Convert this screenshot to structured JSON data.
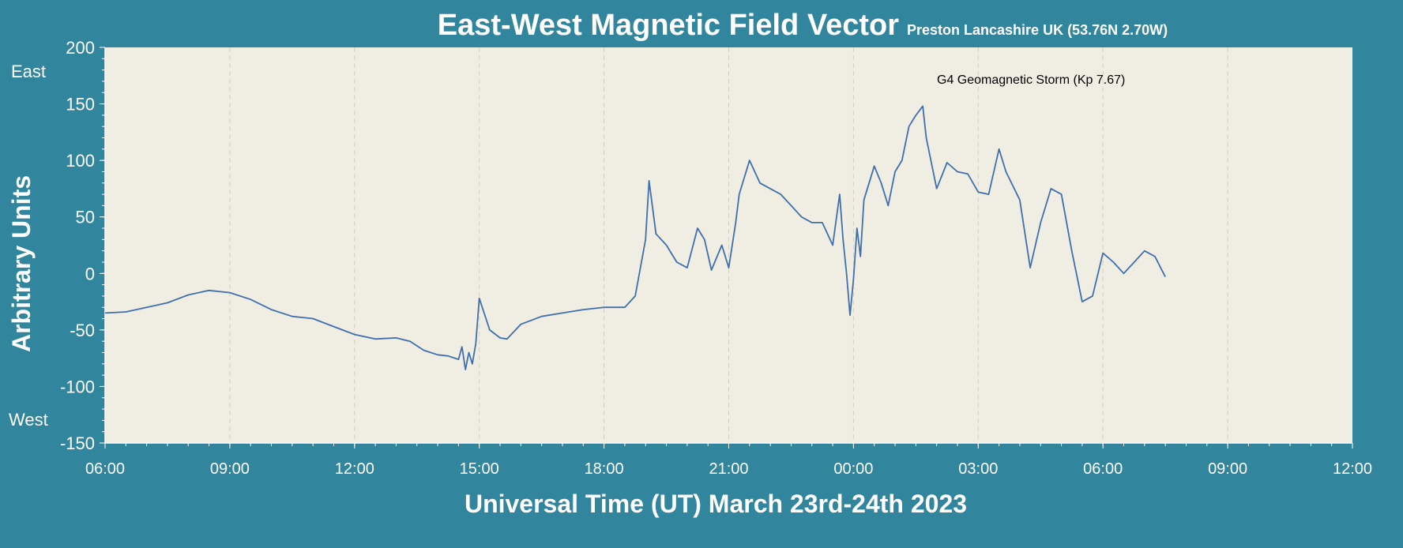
{
  "chart_data": {
    "type": "line",
    "title": "East-West Magnetic Field Vector",
    "subtitle": "Preston Lancashire UK (53.76N 2.70W)",
    "xlabel": "Universal Time (UT) March 23rd-24th 2023",
    "ylabel": "Arbitrary Units",
    "y_top_label": "East",
    "y_bottom_label": "West",
    "annotation": "G4 Geomagnetic Storm (Kp 7.67)",
    "ylim": [
      -150,
      200
    ],
    "yticks": [
      -150,
      -100,
      -50,
      0,
      50,
      100,
      150,
      200
    ],
    "xlim": [
      "2023-03-23 06:00",
      "2023-03-24 12:00"
    ],
    "xtick_labels": [
      "06:00",
      "09:00",
      "12:00",
      "15:00",
      "18:00",
      "21:00",
      "00:00",
      "03:00",
      "06:00",
      "09:00",
      "12:00"
    ],
    "grid": "vertical-dashed",
    "colors": {
      "background": "#31859c",
      "plot_area": "#f0ede2",
      "line": "#3f6fae",
      "grid": "#d4d0c2"
    },
    "series": [
      {
        "x": [
          "2023-03-23 06:00",
          "2023-03-23 06:30",
          "2023-03-23 07:00",
          "2023-03-23 07:30",
          "2023-03-23 08:00",
          "2023-03-23 08:30",
          "2023-03-23 09:00",
          "2023-03-23 09:30",
          "2023-03-23 10:00",
          "2023-03-23 10:30",
          "2023-03-23 11:00",
          "2023-03-23 11:30",
          "2023-03-23 12:00",
          "2023-03-23 12:30",
          "2023-03-23 13:00",
          "2023-03-23 13:20",
          "2023-03-23 13:40",
          "2023-03-23 14:00",
          "2023-03-23 14:15",
          "2023-03-23 14:30",
          "2023-03-23 14:35",
          "2023-03-23 14:40",
          "2023-03-23 14:45",
          "2023-03-23 14:50",
          "2023-03-23 14:55",
          "2023-03-23 15:00",
          "2023-03-23 15:15",
          "2023-03-23 15:30",
          "2023-03-23 15:40",
          "2023-03-23 16:00",
          "2023-03-23 16:30",
          "2023-03-23 17:00",
          "2023-03-23 17:30",
          "2023-03-23 18:00",
          "2023-03-23 18:30",
          "2023-03-23 18:45",
          "2023-03-23 19:00",
          "2023-03-23 19:05",
          "2023-03-23 19:15",
          "2023-03-23 19:30",
          "2023-03-23 19:45",
          "2023-03-23 20:00",
          "2023-03-23 20:15",
          "2023-03-23 20:25",
          "2023-03-23 20:35",
          "2023-03-23 20:50",
          "2023-03-23 21:00",
          "2023-03-23 21:10",
          "2023-03-23 21:15",
          "2023-03-23 21:30",
          "2023-03-23 21:45",
          "2023-03-23 22:00",
          "2023-03-23 22:15",
          "2023-03-23 22:30",
          "2023-03-23 22:45",
          "2023-03-23 23:00",
          "2023-03-23 23:15",
          "2023-03-23 23:30",
          "2023-03-23 23:40",
          "2023-03-23 23:45",
          "2023-03-23 23:50",
          "2023-03-23 23:55",
          "2023-03-24 00:00",
          "2023-03-24 00:05",
          "2023-03-24 00:10",
          "2023-03-24 00:15",
          "2023-03-24 00:30",
          "2023-03-24 00:40",
          "2023-03-24 00:50",
          "2023-03-24 01:00",
          "2023-03-24 01:10",
          "2023-03-24 01:20",
          "2023-03-24 01:30",
          "2023-03-24 01:40",
          "2023-03-24 01:45",
          "2023-03-24 02:00",
          "2023-03-24 02:15",
          "2023-03-24 02:30",
          "2023-03-24 02:45",
          "2023-03-24 03:00",
          "2023-03-24 03:15",
          "2023-03-24 03:30",
          "2023-03-24 03:40",
          "2023-03-24 04:00",
          "2023-03-24 04:15",
          "2023-03-24 04:30",
          "2023-03-24 04:45",
          "2023-03-24 05:00",
          "2023-03-24 05:15",
          "2023-03-24 05:30",
          "2023-03-24 05:45",
          "2023-03-24 06:00",
          "2023-03-24 06:15",
          "2023-03-24 06:30",
          "2023-03-24 06:45",
          "2023-03-24 07:00",
          "2023-03-24 07:15",
          "2023-03-24 07:30"
        ],
        "values": [
          -35,
          -34,
          -30,
          -26,
          -19,
          -15,
          -17,
          -23,
          -32,
          -38,
          -40,
          -47,
          -54,
          -58,
          -57,
          -60,
          -68,
          -72,
          -73,
          -76,
          -65,
          -85,
          -70,
          -80,
          -62,
          -22,
          -50,
          -57,
          -58,
          -45,
          -38,
          -35,
          -32,
          -30,
          -30,
          -20,
          30,
          82,
          35,
          25,
          10,
          5,
          40,
          30,
          3,
          25,
          5,
          45,
          70,
          100,
          80,
          75,
          70,
          60,
          50,
          45,
          45,
          25,
          70,
          30,
          0,
          -37,
          -5,
          40,
          15,
          65,
          95,
          80,
          60,
          90,
          100,
          130,
          140,
          148,
          120,
          75,
          98,
          90,
          88,
          72,
          70,
          110,
          90,
          65,
          5,
          45,
          75,
          70,
          20,
          -25,
          -20,
          18,
          10,
          0,
          10,
          20,
          15,
          -3
        ]
      }
    ]
  }
}
